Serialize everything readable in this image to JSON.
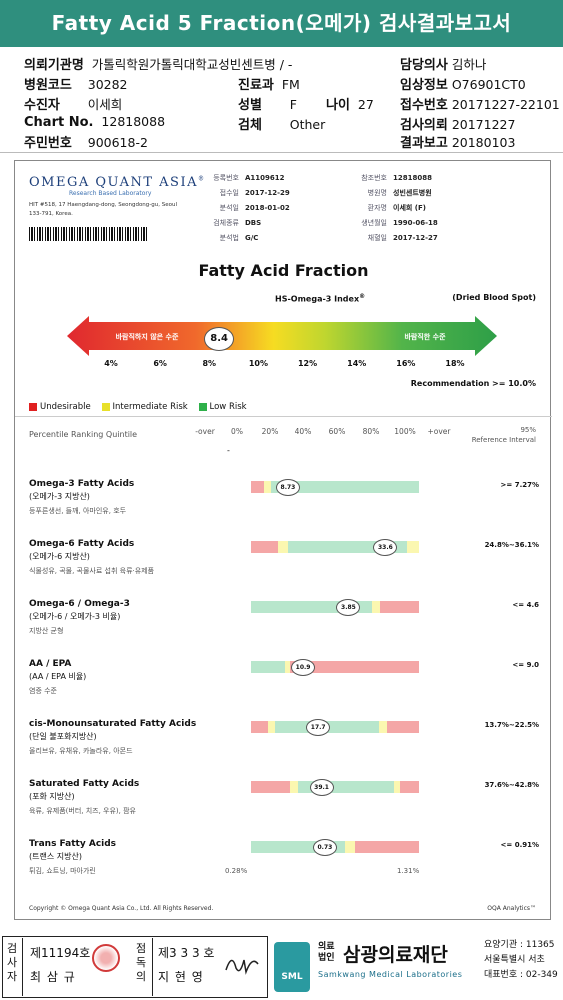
{
  "header": {
    "title": "Fatty Acid 5 Fraction(오메가) 검사결과보고서"
  },
  "patient": {
    "hospital_label": "의뢰기관명",
    "hospital": "가톨릭학원가톨릭대학교성빈센트병 / -",
    "code_label": "병원코드",
    "code": "30282",
    "patient_label": "수진자",
    "patient": "이세희",
    "chart_label": "Chart No.",
    "chart": "12818088",
    "rrn_label": "주민번호",
    "rrn": "900618-2",
    "dept_label": "진료과",
    "dept": "FM",
    "sex_label": "성별",
    "sex": "F",
    "age_label": "나이",
    "age": "27",
    "specimen_label": "검체",
    "specimen": "Other",
    "doctor_label": "담당의사",
    "doctor": "김하나",
    "clinical_label": "임상정보",
    "clinical": "O76901CT0",
    "recv_label": "접수번호",
    "recv": "20171227-22101",
    "request_label": "검사의뢰",
    "request": "20171227",
    "result_label": "결과보고",
    "result": "20180103"
  },
  "report": {
    "logo": "OMEGA QUANT ASIA",
    "logo_tm": "®",
    "logo_sub": "Research Based Laboratory",
    "address": "HIT #518, 17 Haengdang-dong, Seongdong-gu, Seoul 133-791, Korea.",
    "meta_left": [
      {
        "k": "등록번호",
        "v": "A1109612"
      },
      {
        "k": "접수일",
        "v": "2017-12-29"
      },
      {
        "k": "분석일",
        "v": "2018-01-02"
      },
      {
        "k": "검체종류",
        "v": "DBS"
      },
      {
        "k": "분석법",
        "v": "G/C"
      }
    ],
    "meta_right": [
      {
        "k": "참조번호",
        "v": "12818088"
      },
      {
        "k": "병원명",
        "v": "성빈센트병원"
      },
      {
        "k": "환자명",
        "v": "이세희 (F)"
      },
      {
        "k": "생년월일",
        "v": "1990-06-18"
      },
      {
        "k": "채혈일",
        "v": "2017-12-27"
      }
    ],
    "section_title": "Fatty Acid Fraction",
    "index_title": "HS-Omega-3 Index",
    "index_sup": "®",
    "dried": "(Dried Blood Spot)",
    "arrow_left": "바람직하지 않은 수준",
    "arrow_right": "바람직한 수준",
    "index_value": "8.4",
    "index_ticks": [
      "4%",
      "6%",
      "8%",
      "10%",
      "12%",
      "14%",
      "16%",
      "18%"
    ],
    "recommendation": "Recommendation >= 10.0%",
    "legend": [
      "Undesirable",
      "Intermediate Risk",
      "Low Risk"
    ],
    "percentile_label": "Percentile Ranking Quintile",
    "quintile_ticks": [
      "-over",
      "0%",
      "20%",
      "40%",
      "60%",
      "80%",
      "100%",
      "+over"
    ],
    "ref95": "95%",
    "ref_interval": "Reference Interval",
    "dash": "-",
    "rows": [
      {
        "name": "Omega-3 Fatty Acids",
        "kname": "(오메가-3 지방산)",
        "foods": "등푸른생선, 들깨, 아마인유, 호두",
        "value": "8.73",
        "ref": ">= 7.27%"
      },
      {
        "name": "Omega-6 Fatty Acids",
        "kname": "(오메가-6 지방산)",
        "foods": "식물성유, 곡물, 곡물사료 섭취 육류·유제품",
        "value": "33.6",
        "ref": "24.8%~36.1%"
      },
      {
        "name": "Omega-6 / Omega-3",
        "kname": "(오메가-6 / 오메가-3 비율)",
        "foods": "지방산 균형",
        "value": "3.85",
        "ref": "<= 4.6"
      },
      {
        "name": "AA / EPA",
        "kname": "(AA / EPA 비율)",
        "foods": "염증 수준",
        "value": "10.9",
        "ref": "<= 9.0"
      },
      {
        "name": "cis-Monounsaturated Fatty Acids",
        "kname": "(단일 불포화지방산)",
        "foods": "올리브유, 유채유, 카놀라유, 아몬드",
        "value": "17.7",
        "ref": "13.7%~22.5%"
      },
      {
        "name": "Saturated Fatty Acids",
        "kname": "(포화 지방산)",
        "foods": "육류, 유제품(버터, 치즈, 우유), 팜유",
        "value": "39.1",
        "ref": "37.6%~42.8%"
      },
      {
        "name": "Trans Fatty Acids",
        "kname": "(트랜스 지방산)",
        "foods": "튀김, 쇼트닝, 마아가린",
        "value": "0.73",
        "ref": "<= 0.91%"
      }
    ],
    "trans_min": "0.28%",
    "trans_max": "1.31%",
    "copyright": "Copyright © Omega Quant Asia Co., Ltd.  All Rights Reserved.",
    "oqa": "OQA Analytics™"
  },
  "signature": {
    "a_label": "검사자",
    "a_no": "제11194호",
    "a_name": "최 삼 규",
    "b_label": "점독의",
    "b_no": "제3 3 3 호",
    "b_name": "지 현 영",
    "org": "삼광의료재단",
    "org_pre": "의료법인",
    "org_en": "Samkwang Medical Laboratories",
    "sml": "SML",
    "c1": "요양기관 : 11365",
    "c2": "서울특별시 서초",
    "c3": "대표번호 : 02-349"
  },
  "colors": {
    "header": "#2f8f7e",
    "red": "#f4a6a6",
    "yellow": "#fbf7b0",
    "green": "#b8e6cc"
  }
}
